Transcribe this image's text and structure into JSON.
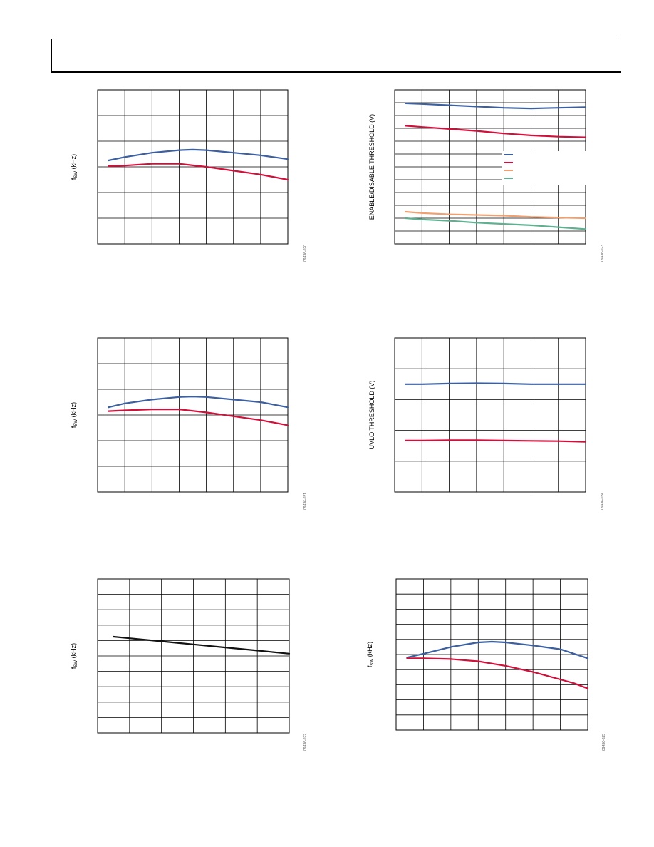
{
  "colors": {
    "blue": "#3c5fa0",
    "red": "#d0103a",
    "orange": "#f0a070",
    "green": "#5fb090",
    "black": "#111111",
    "grid": "#000000"
  },
  "chart_data": [
    {
      "type": "line",
      "id": "c1",
      "ylabel_main": "f",
      "ylabel_sub": "SW",
      "ylabel_rest": " (kHz)",
      "fig_id": "09436-020",
      "xlim": [
        0,
        7
      ],
      "ylim": [
        0,
        6
      ],
      "series": [
        {
          "color": "blue",
          "x": [
            0.4,
            1,
            2,
            3,
            3.5,
            4,
            5,
            6,
            7
          ],
          "y": [
            3.25,
            3.38,
            3.55,
            3.65,
            3.67,
            3.65,
            3.55,
            3.45,
            3.3
          ]
        },
        {
          "color": "red",
          "x": [
            0.4,
            1,
            2,
            3,
            4,
            5,
            6,
            7
          ],
          "y": [
            3.03,
            3.05,
            3.12,
            3.12,
            3.0,
            2.85,
            2.7,
            2.5
          ]
        }
      ]
    },
    {
      "type": "line",
      "id": "c2",
      "ylabel_main": "ENABLE/DISABLE THRESHOLD (V)",
      "fig_id": "09436-023",
      "xlim": [
        0,
        7
      ],
      "ylim": [
        0,
        12
      ],
      "series": [
        {
          "color": "blue",
          "x": [
            0.4,
            1,
            2,
            3,
            4,
            5,
            6,
            7
          ],
          "y": [
            10.95,
            10.9,
            10.8,
            10.7,
            10.6,
            10.55,
            10.6,
            10.65
          ]
        },
        {
          "color": "red",
          "x": [
            0.4,
            1,
            2,
            3,
            4,
            5,
            6,
            7
          ],
          "y": [
            9.2,
            9.1,
            8.95,
            8.8,
            8.6,
            8.45,
            8.35,
            8.3
          ]
        },
        {
          "color": "orange",
          "x": [
            0.4,
            1,
            2,
            3,
            4,
            5,
            6,
            7
          ],
          "y": [
            2.5,
            2.4,
            2.3,
            2.25,
            2.2,
            2.1,
            2.05,
            2.0
          ]
        },
        {
          "color": "green",
          "x": [
            0.4,
            1,
            2,
            3,
            4,
            5,
            6,
            7
          ],
          "y": [
            2.0,
            1.9,
            1.8,
            1.65,
            1.55,
            1.45,
            1.3,
            1.15
          ]
        }
      ],
      "legend_colors": [
        "blue",
        "red",
        "orange",
        "green"
      ]
    },
    {
      "type": "line",
      "id": "c3",
      "ylabel_main": "f",
      "ylabel_sub": "SW",
      "ylabel_rest": " (kHz)",
      "fig_id": "09436-021",
      "xlim": [
        0,
        7
      ],
      "ylim": [
        0,
        6
      ],
      "series": [
        {
          "color": "blue",
          "x": [
            0.4,
            1,
            2,
            3,
            3.5,
            4,
            5,
            6,
            7
          ],
          "y": [
            3.3,
            3.45,
            3.6,
            3.7,
            3.72,
            3.7,
            3.6,
            3.5,
            3.3
          ]
        },
        {
          "color": "red",
          "x": [
            0.4,
            1,
            2,
            3,
            4,
            5,
            6,
            7
          ],
          "y": [
            3.15,
            3.18,
            3.22,
            3.22,
            3.1,
            2.95,
            2.8,
            2.6
          ]
        }
      ]
    },
    {
      "type": "line",
      "id": "c4",
      "ylabel_main": "UVLO THRESHOLD (V)",
      "fig_id": "09436-024",
      "xlim": [
        0,
        7
      ],
      "ylim": [
        0,
        5
      ],
      "series": [
        {
          "color": "blue",
          "x": [
            0.4,
            1,
            2,
            3,
            4,
            5,
            6,
            7
          ],
          "y": [
            3.5,
            3.5,
            3.52,
            3.53,
            3.52,
            3.5,
            3.5,
            3.5
          ]
        },
        {
          "color": "red",
          "x": [
            0.4,
            1,
            2,
            3,
            4,
            5,
            6,
            7
          ],
          "y": [
            1.67,
            1.67,
            1.68,
            1.68,
            1.67,
            1.66,
            1.65,
            1.63
          ]
        }
      ]
    },
    {
      "type": "line",
      "id": "c5",
      "ylabel_main": "f",
      "ylabel_sub": "SW",
      "ylabel_rest": " (kHz)",
      "fig_id": "09436-022",
      "xlim": [
        0,
        6
      ],
      "ylim": [
        0,
        10
      ],
      "series": [
        {
          "color": "black",
          "x": [
            0.5,
            1,
            2,
            3,
            4,
            5,
            6
          ],
          "y": [
            6.25,
            6.15,
            5.95,
            5.75,
            5.55,
            5.35,
            5.15
          ]
        }
      ]
    },
    {
      "type": "line",
      "id": "c6",
      "ylabel_main": "f",
      "ylabel_sub": "SW",
      "ylabel_rest": " (kHz)",
      "fig_id": "09436-025",
      "xlim": [
        0,
        7
      ],
      "ylim": [
        0,
        10
      ],
      "series": [
        {
          "color": "blue",
          "x": [
            0.4,
            1,
            2,
            3,
            3.5,
            4,
            5,
            6,
            7
          ],
          "y": [
            4.8,
            5.05,
            5.5,
            5.8,
            5.85,
            5.8,
            5.6,
            5.35,
            4.75
          ]
        },
        {
          "color": "red",
          "x": [
            0.4,
            1,
            2,
            3,
            4,
            5,
            6,
            6.5,
            7
          ],
          "y": [
            4.75,
            4.75,
            4.7,
            4.55,
            4.25,
            3.85,
            3.35,
            3.1,
            2.75
          ]
        }
      ]
    }
  ]
}
